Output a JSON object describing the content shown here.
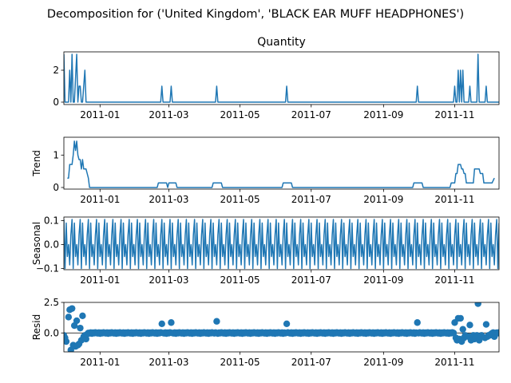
{
  "figure": {
    "suptitle": "Decomposition for ('United Kingdom', 'BLACK EAR MUFF HEADPHONES')"
  },
  "chart_data": [
    {
      "id": "observed",
      "type": "line",
      "title": "Quantity",
      "ylabel": "",
      "xlim": [
        "2010-12-01",
        "2011-12-09"
      ],
      "ylim": [
        -0.15,
        3.15
      ],
      "yticks": [
        0,
        2
      ],
      "xticks": [
        "2011-01-01",
        "2011-03-01",
        "2011-05-01",
        "2011-07-01",
        "2011-09-01",
        "2011-11-01"
      ],
      "xticklabels": [
        "2011-01",
        "2011-03",
        "2011-05",
        "2011-07",
        "2011-09",
        "2011-11"
      ],
      "color": "#1f77b4",
      "points": [
        [
          "2010-12-01",
          3
        ],
        [
          "2010-12-02",
          0
        ],
        [
          "2010-12-05",
          0
        ],
        [
          "2010-12-06",
          2
        ],
        [
          "2010-12-07",
          0
        ],
        [
          "2010-12-08",
          3
        ],
        [
          "2010-12-09",
          0
        ],
        [
          "2010-12-10",
          0
        ],
        [
          "2010-12-12",
          3
        ],
        [
          "2010-12-13",
          0
        ],
        [
          "2010-12-14",
          1
        ],
        [
          "2010-12-15",
          1
        ],
        [
          "2010-12-16",
          0
        ],
        [
          "2010-12-17",
          0
        ],
        [
          "2010-12-19",
          2
        ],
        [
          "2010-12-20",
          0
        ],
        [
          "2011-02-22",
          0
        ],
        [
          "2011-02-23",
          1
        ],
        [
          "2011-02-24",
          0
        ],
        [
          "2011-03-02",
          0
        ],
        [
          "2011-03-03",
          1
        ],
        [
          "2011-03-04",
          0
        ],
        [
          "2011-04-10",
          0
        ],
        [
          "2011-04-11",
          1
        ],
        [
          "2011-04-12",
          0
        ],
        [
          "2011-06-09",
          0
        ],
        [
          "2011-06-10",
          1
        ],
        [
          "2011-06-11",
          0
        ],
        [
          "2011-09-29",
          0
        ],
        [
          "2011-09-30",
          1
        ],
        [
          "2011-10-01",
          0
        ],
        [
          "2011-10-31",
          0
        ],
        [
          "2011-11-01",
          1
        ],
        [
          "2011-11-02",
          0
        ],
        [
          "2011-11-03",
          0
        ],
        [
          "2011-11-04",
          2
        ],
        [
          "2011-11-05",
          0
        ],
        [
          "2011-11-06",
          2
        ],
        [
          "2011-11-07",
          0
        ],
        [
          "2011-11-08",
          2
        ],
        [
          "2011-11-09",
          0
        ],
        [
          "2011-11-10",
          0
        ],
        [
          "2011-11-13",
          0
        ],
        [
          "2011-11-14",
          1
        ],
        [
          "2011-11-15",
          0
        ],
        [
          "2011-11-20",
          0
        ],
        [
          "2011-11-21",
          3
        ],
        [
          "2011-11-22",
          0
        ],
        [
          "2011-11-27",
          0
        ],
        [
          "2011-11-28",
          1
        ],
        [
          "2011-11-29",
          0
        ],
        [
          "2011-12-09",
          0
        ]
      ]
    },
    {
      "id": "trend",
      "type": "line",
      "title": "",
      "ylabel": "Trend",
      "xlim": [
        "2010-12-01",
        "2011-12-09"
      ],
      "ylim": [
        -0.05,
        1.55
      ],
      "yticks": [
        0,
        1
      ],
      "xticks": [
        "2011-01-01",
        "2011-03-01",
        "2011-05-01",
        "2011-07-01",
        "2011-09-01",
        "2011-11-01"
      ],
      "xticklabels": [
        "2011-01",
        "2011-03",
        "2011-05",
        "2011-07",
        "2011-09",
        "2011-11"
      ],
      "color": "#1f77b4",
      "points": [
        [
          "2010-12-04",
          0.29
        ],
        [
          "2010-12-05",
          0.29
        ],
        [
          "2010-12-06",
          0.71
        ],
        [
          "2010-12-07",
          0.71
        ],
        [
          "2010-12-08",
          0.71
        ],
        [
          "2010-12-09",
          1.0
        ],
        [
          "2010-12-10",
          1.43
        ],
        [
          "2010-12-11",
          1.14
        ],
        [
          "2010-12-12",
          1.43
        ],
        [
          "2010-12-13",
          1.0
        ],
        [
          "2010-12-14",
          0.86
        ],
        [
          "2010-12-15",
          0.86
        ],
        [
          "2010-12-16",
          0.57
        ],
        [
          "2010-12-17",
          0.86
        ],
        [
          "2010-12-18",
          0.57
        ],
        [
          "2010-12-19",
          0.57
        ],
        [
          "2010-12-20",
          0.57
        ],
        [
          "2010-12-21",
          0.43
        ],
        [
          "2010-12-22",
          0.29
        ],
        [
          "2010-12-23",
          0.0
        ],
        [
          "2011-02-19",
          0.0
        ],
        [
          "2011-02-20",
          0.14
        ],
        [
          "2011-02-27",
          0.14
        ],
        [
          "2011-02-28",
          0.0
        ],
        [
          "2011-03-01",
          0.14
        ],
        [
          "2011-03-07",
          0.14
        ],
        [
          "2011-03-08",
          0.0
        ],
        [
          "2011-04-07",
          0.0
        ],
        [
          "2011-04-08",
          0.14
        ],
        [
          "2011-04-15",
          0.14
        ],
        [
          "2011-04-16",
          0.0
        ],
        [
          "2011-06-06",
          0.0
        ],
        [
          "2011-06-07",
          0.14
        ],
        [
          "2011-06-14",
          0.14
        ],
        [
          "2011-06-15",
          0.0
        ],
        [
          "2011-09-26",
          0.0
        ],
        [
          "2011-09-27",
          0.14
        ],
        [
          "2011-10-04",
          0.14
        ],
        [
          "2011-10-05",
          0.0
        ],
        [
          "2011-10-28",
          0.0
        ],
        [
          "2011-10-29",
          0.14
        ],
        [
          "2011-11-01",
          0.14
        ],
        [
          "2011-11-02",
          0.43
        ],
        [
          "2011-11-03",
          0.43
        ],
        [
          "2011-11-04",
          0.71
        ],
        [
          "2011-11-05",
          0.71
        ],
        [
          "2011-11-06",
          0.71
        ],
        [
          "2011-11-07",
          0.57
        ],
        [
          "2011-11-08",
          0.57
        ],
        [
          "2011-11-09",
          0.43
        ],
        [
          "2011-11-10",
          0.43
        ],
        [
          "2011-11-11",
          0.14
        ],
        [
          "2011-11-17",
          0.14
        ],
        [
          "2011-11-18",
          0.57
        ],
        [
          "2011-11-22",
          0.57
        ],
        [
          "2011-11-23",
          0.43
        ],
        [
          "2011-11-25",
          0.43
        ],
        [
          "2011-11-26",
          0.14
        ],
        [
          "2011-12-02",
          0.14
        ],
        [
          "2011-12-03",
          0.14
        ],
        [
          "2011-12-05",
          0.29
        ]
      ]
    },
    {
      "id": "seasonal",
      "type": "line",
      "title": "",
      "ylabel": "Seasonal",
      "xlim": [
        "2010-12-01",
        "2011-12-09"
      ],
      "ylim": [
        -0.105,
        0.115
      ],
      "yticks": [
        -0.1,
        0.0,
        0.1
      ],
      "yticklabels": [
        "−0.1",
        "0.0",
        "0.1"
      ],
      "xticks": [
        "2011-01-01",
        "2011-03-01",
        "2011-05-01",
        "2011-07-01",
        "2011-09-01",
        "2011-11-01"
      ],
      "xticklabels": [
        "2011-01",
        "2011-03",
        "2011-05",
        "2011-07",
        "2011-09",
        "2011-11"
      ],
      "color": "#1f77b4",
      "start": "2010-12-01",
      "end": "2011-12-09",
      "weekly_pattern": [
        0.105,
        -0.1,
        0.09,
        -0.05,
        0.0,
        -0.085,
        0.04
      ]
    },
    {
      "id": "resid",
      "type": "scatter",
      "title": "",
      "ylabel": "Resid",
      "xlim": [
        "2010-12-01",
        "2011-12-09"
      ],
      "ylim": [
        -1.55,
        2.5
      ],
      "yticks": [
        0.0,
        2.5
      ],
      "yticklabels": [
        "0.0",
        "2.5"
      ],
      "xticks": [
        "2011-01-01",
        "2011-03-01",
        "2011-05-01",
        "2011-07-01",
        "2011-09-01",
        "2011-11-01"
      ],
      "xticklabels": [
        "2011-01",
        "2011-03",
        "2011-05",
        "2011-07",
        "2011-09",
        "2011-11"
      ],
      "color": "#1f77b4",
      "baseline": 0,
      "points": [
        [
          "2010-12-01",
          -0.2
        ],
        [
          "2010-12-02",
          -0.4
        ],
        [
          "2010-12-03",
          -0.7
        ],
        [
          "2010-12-05",
          1.3
        ],
        [
          "2010-12-06",
          1.9
        ],
        [
          "2010-12-07",
          -1.4
        ],
        [
          "2010-12-08",
          2.0
        ],
        [
          "2010-12-09",
          -1.0
        ],
        [
          "2010-12-10",
          0.6
        ],
        [
          "2010-12-11",
          -1.1
        ],
        [
          "2010-12-12",
          1.0
        ],
        [
          "2010-12-13",
          -1.0
        ],
        [
          "2010-12-14",
          -0.9
        ],
        [
          "2010-12-15",
          0.4
        ],
        [
          "2010-12-16",
          -0.6
        ],
        [
          "2010-12-17",
          1.4
        ],
        [
          "2010-12-18",
          -0.3
        ],
        [
          "2010-12-19",
          -0.2
        ],
        [
          "2010-12-20",
          -0.5
        ],
        [
          "2010-12-21",
          -0.1
        ],
        [
          "2011-02-23",
          0.75
        ],
        [
          "2011-03-03",
          0.85
        ],
        [
          "2011-04-11",
          0.95
        ],
        [
          "2011-06-10",
          0.75
        ],
        [
          "2011-09-30",
          0.85
        ],
        [
          "2011-11-01",
          0.85
        ],
        [
          "2011-11-02",
          -0.4
        ],
        [
          "2011-11-03",
          -0.6
        ],
        [
          "2011-11-04",
          1.2
        ],
        [
          "2011-11-05",
          -0.5
        ],
        [
          "2011-11-06",
          1.2
        ],
        [
          "2011-11-07",
          -0.7
        ],
        [
          "2011-11-08",
          0.3
        ],
        [
          "2011-11-09",
          -0.4
        ],
        [
          "2011-11-10",
          -0.2
        ],
        [
          "2011-11-13",
          -0.3
        ],
        [
          "2011-11-14",
          0.65
        ],
        [
          "2011-11-15",
          -0.6
        ],
        [
          "2011-11-16",
          -0.3
        ],
        [
          "2011-11-17",
          -0.2
        ],
        [
          "2011-11-18",
          -0.5
        ],
        [
          "2011-11-19",
          -0.4
        ],
        [
          "2011-11-20",
          -0.2
        ],
        [
          "2011-11-21",
          2.4
        ],
        [
          "2011-11-22",
          -0.6
        ],
        [
          "2011-11-23",
          -0.3
        ],
        [
          "2011-11-24",
          -0.2
        ],
        [
          "2011-11-27",
          -0.4
        ],
        [
          "2011-11-28",
          0.7
        ],
        [
          "2011-11-29",
          -0.3
        ],
        [
          "2011-11-30",
          -0.2
        ],
        [
          "2011-12-01",
          -0.2
        ],
        [
          "2011-12-02",
          -0.1
        ],
        [
          "2011-12-05",
          -0.3
        ]
      ],
      "zero_ranges": [
        [
          "2010-12-22",
          "2011-10-31"
        ],
        [
          "2011-12-02",
          "2011-12-09"
        ]
      ],
      "zero_exclude": [
        "2011-02-23",
        "2011-03-03",
        "2011-04-11",
        "2011-06-10",
        "2011-09-30"
      ],
      "zero_jitter": [
        0.0,
        -0.03,
        0.03,
        -0.05,
        0.02,
        -0.02,
        0.04
      ]
    }
  ]
}
